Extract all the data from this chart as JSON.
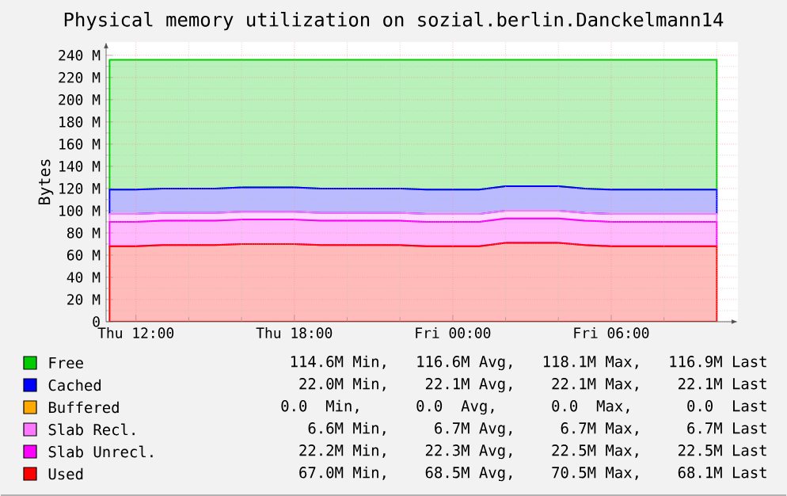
{
  "chart_data": {
    "type": "area",
    "title": "Physical memory utilization on sozial.berlin.Danckelmann14",
    "ylabel": "Bytes",
    "stacked": true,
    "categories": [
      null,
      "Thu 12:00",
      null,
      null,
      null,
      null,
      null,
      "Thu 18:00",
      null,
      null,
      null,
      null,
      null,
      "Fri 00:00",
      null,
      null,
      null,
      null,
      null,
      "Fri 06:00",
      null,
      null,
      null,
      null
    ],
    "series": [
      {
        "name": "Used",
        "color": "#ff0000",
        "values": [
          68,
          68,
          69,
          69,
          69,
          70,
          70,
          70,
          69,
          69,
          69,
          69,
          68,
          68,
          68,
          71,
          71,
          71,
          69,
          68,
          68,
          68,
          68,
          68
        ]
      },
      {
        "name": "Slab Unrecl.",
        "color": "#ff00ff",
        "values": [
          22,
          22,
          22,
          22,
          22,
          22,
          22,
          22,
          22,
          22,
          22,
          22,
          22,
          22,
          22,
          22,
          22,
          22,
          22,
          22,
          22,
          22,
          22,
          22
        ]
      },
      {
        "name": "Slab Recl.",
        "color": "#ff77ff",
        "values": [
          7,
          7,
          7,
          7,
          7,
          7,
          7,
          7,
          7,
          7,
          7,
          7,
          7,
          7,
          7,
          7,
          7,
          7,
          7,
          7,
          7,
          7,
          7,
          7
        ]
      },
      {
        "name": "Buffered",
        "color": "#ffaa00",
        "values": [
          null,
          null,
          null,
          null,
          null,
          null,
          null,
          null,
          null,
          null,
          null,
          null,
          null,
          null,
          null,
          null,
          null,
          null,
          null,
          null,
          null,
          null,
          null,
          null
        ]
      },
      {
        "name": "Cached",
        "color": "#0000ff",
        "values": [
          22,
          22,
          22,
          22,
          22,
          22,
          22,
          22,
          22,
          22,
          22,
          22,
          22,
          22,
          22,
          22,
          22,
          22,
          22,
          22,
          22,
          22,
          22,
          22
        ]
      },
      {
        "name": "Free",
        "color": "#00cc00",
        "values": [
          117,
          117,
          116,
          116,
          116,
          115,
          115,
          115,
          116,
          116,
          116,
          116,
          117,
          117,
          117,
          114,
          114,
          114,
          116,
          117,
          117,
          117,
          117,
          117
        ]
      }
    ],
    "ylim": [
      0,
      252
    ],
    "yticks": [
      0,
      {
        "value": 20,
        "label": "20 M"
      },
      {
        "value": 40,
        "label": "40 M"
      },
      {
        "value": 60,
        "label": "60 M"
      },
      {
        "value": 80,
        "label": "80 M"
      },
      {
        "value": 100,
        "label": "100 M"
      },
      {
        "value": 120,
        "label": "120 M"
      },
      {
        "value": 140,
        "label": "140 M"
      },
      {
        "value": 160,
        "label": "160 M"
      },
      {
        "value": 180,
        "label": "180 M"
      },
      {
        "value": 200,
        "label": "200 M"
      },
      {
        "value": 220,
        "label": "220 M"
      },
      {
        "value": 240,
        "label": "240 M"
      }
    ],
    "grid": true,
    "legend": "bottom",
    "annotations": [
      "114.6M Min,   116.6M Avg,   118.1M Max,   116.9M Last",
      "22.0M Min,    22.1M Avg,    22.1M Max,    22.1M Last",
      "0.0  Min,      0.0  Avg,      0.0  Max,      0.0  Last",
      "6.6M Min,     6.7M Avg,     6.7M Max,     6.7M Last",
      "22.2M Min,    22.3M Avg,    22.5M Max,    22.5M Last",
      "67.0M Min,    68.5M Avg,    70.5M Max,    68.1M Last"
    ]
  }
}
